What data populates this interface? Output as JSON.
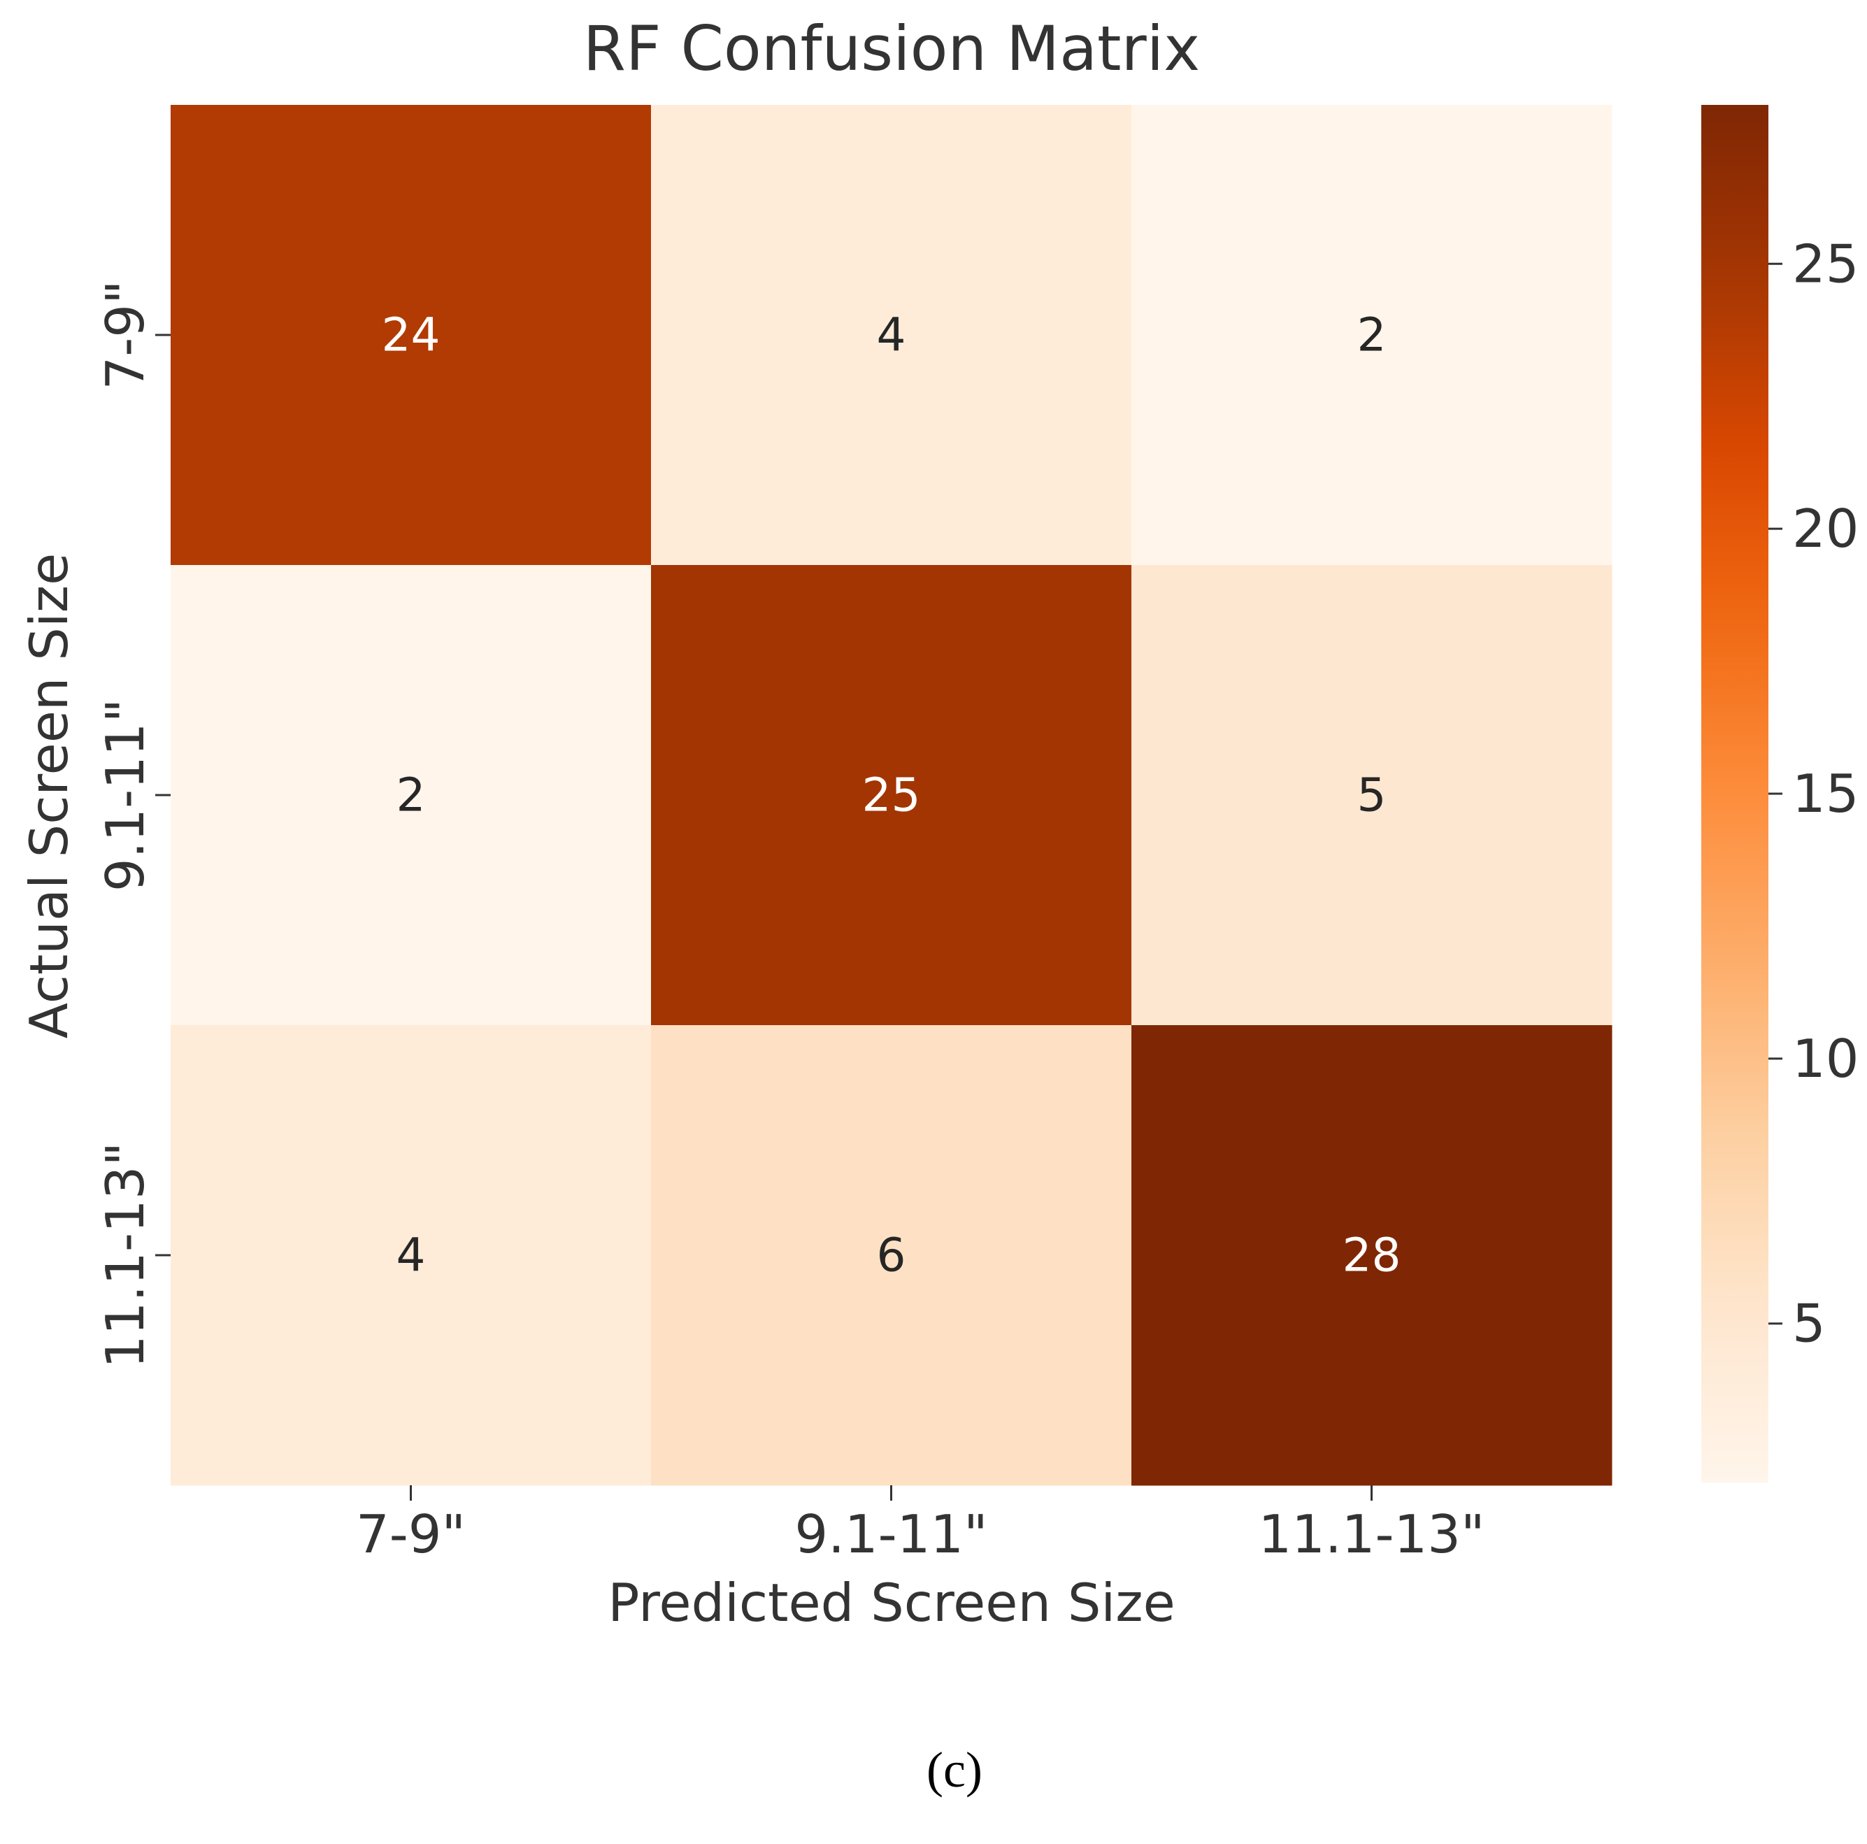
{
  "chart_data": {
    "type": "heatmap",
    "title": "RF Confusion Matrix",
    "xlabel": "Predicted Screen Size",
    "ylabel": "Actual Screen Size",
    "x_categories": [
      "7-9\"",
      "9.1-11\"",
      "11.1-13\""
    ],
    "y_categories": [
      "7-9\"",
      "9.1-11\"",
      "11.1-13\""
    ],
    "values": [
      [
        24,
        4,
        2
      ],
      [
        2,
        25,
        5
      ],
      [
        4,
        6,
        28
      ]
    ],
    "colorscale": "Oranges",
    "color_range": [
      2,
      28
    ],
    "colorbar_ticks": [
      5,
      10,
      15,
      20,
      25
    ]
  },
  "caption": "(c)"
}
